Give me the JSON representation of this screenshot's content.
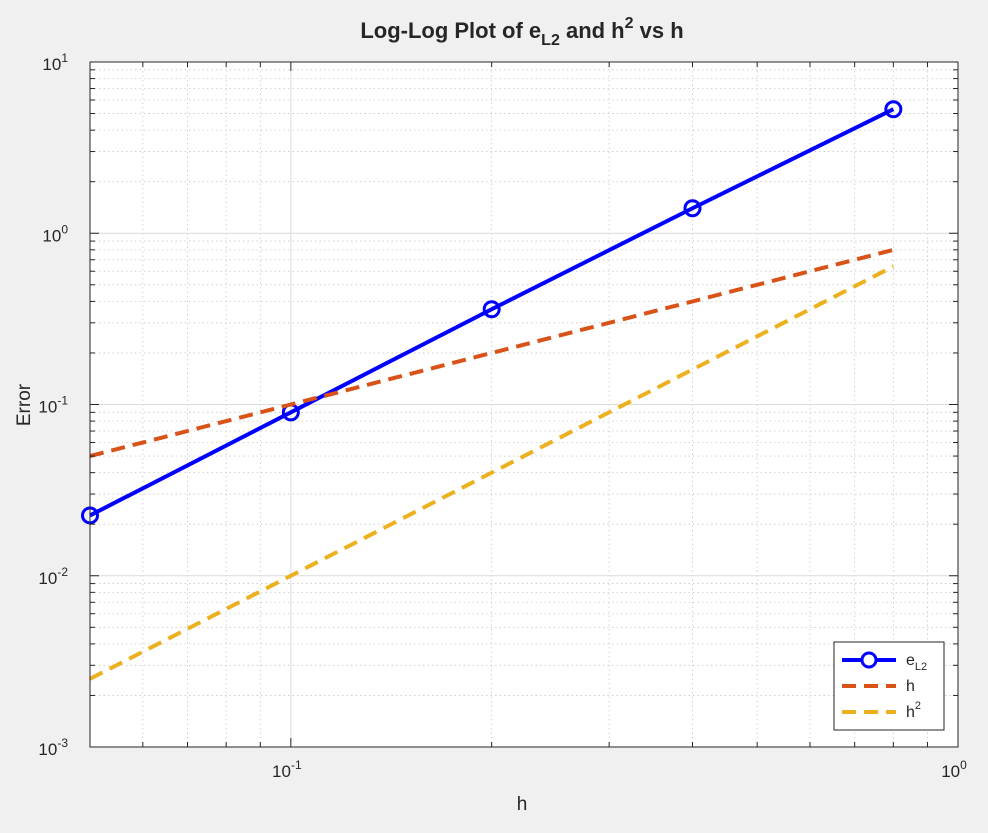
{
  "chart_data": {
    "type": "line",
    "title": {
      "prefix": "Log-Log Plot of e",
      "prefix_sub": "L2",
      "middle": " and h",
      "middle_sup": "2",
      "suffix": " vs h"
    },
    "xlabel": "h",
    "ylabel": "Error",
    "x_scale": "log",
    "y_scale": "log",
    "xlim": [
      0.05,
      1
    ],
    "ylim": [
      0.001,
      10
    ],
    "grid": true,
    "minor_grid": true,
    "legend_position": "bottom-right",
    "x_ticks": [
      {
        "value": 0.1,
        "base": "10",
        "exp": "-1"
      },
      {
        "value": 1,
        "base": "10",
        "exp": "0"
      }
    ],
    "y_ticks": [
      {
        "value": 0.001,
        "base": "10",
        "exp": "-3"
      },
      {
        "value": 0.01,
        "base": "10",
        "exp": "-2"
      },
      {
        "value": 0.1,
        "base": "10",
        "exp": "-1"
      },
      {
        "value": 1,
        "base": "10",
        "exp": "0"
      },
      {
        "value": 10,
        "base": "10",
        "exp": "1"
      }
    ],
    "series": [
      {
        "label_base": "e",
        "label_sub": "L2",
        "label_sup": "",
        "color": "#0000ff",
        "style": "solid-markers",
        "x": [
          0.05,
          0.1,
          0.2,
          0.4,
          0.8
        ],
        "y": [
          0.0225,
          0.09,
          0.36,
          1.4,
          5.3
        ]
      },
      {
        "label_base": "h",
        "label_sub": "",
        "label_sup": "",
        "color": "#d95319",
        "style": "dashed",
        "x": [
          0.05,
          0.1,
          0.2,
          0.4,
          0.8
        ],
        "y": [
          0.05,
          0.1,
          0.2,
          0.4,
          0.8
        ]
      },
      {
        "label_base": "h",
        "label_sub": "",
        "label_sup": "2",
        "color": "#edb120",
        "style": "dashed",
        "x": [
          0.05,
          0.1,
          0.2,
          0.4,
          0.8
        ],
        "y": [
          0.0025,
          0.01,
          0.04,
          0.16,
          0.64
        ]
      }
    ]
  }
}
